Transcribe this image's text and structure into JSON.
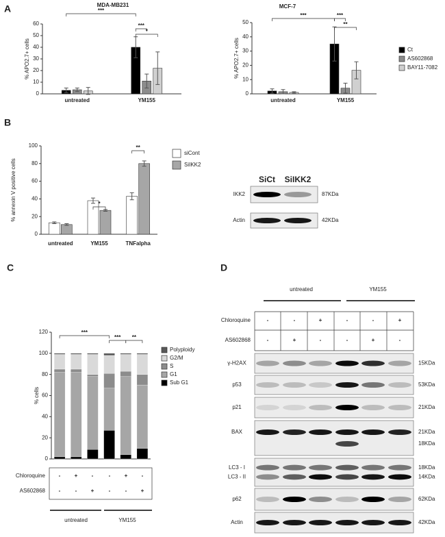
{
  "panel_labels": [
    "A",
    "B",
    "C",
    "D"
  ],
  "chart_data": [
    {
      "type": "bar",
      "title": "MDA-MB231",
      "y_label": "% APO2.7+ cells",
      "categories": [
        "untreated",
        "YM155"
      ],
      "series": [
        {
          "color": "#000000",
          "values": [
            3,
            40
          ],
          "errors": [
            2,
            9
          ]
        },
        {
          "color": "#8c8c8c",
          "values": [
            3.5,
            11
          ],
          "errors": [
            1.5,
            6
          ]
        },
        {
          "color": "#d0d0d0",
          "values": [
            2.5,
            22
          ],
          "errors": [
            3,
            14
          ]
        }
      ],
      "ylim": [
        0,
        60
      ],
      "yticks": [
        0,
        10,
        20,
        30,
        40,
        50,
        60
      ],
      "annotations": [
        "***",
        "***",
        "*"
      ]
    },
    {
      "type": "bar",
      "title": "MCF-7",
      "y_label": "% APO2.7+ cells",
      "categories": [
        "untreated",
        "YM155"
      ],
      "series": [
        {
          "name": "Ct",
          "color": "#000000",
          "values": [
            2,
            35
          ],
          "errors": [
            1.5,
            12
          ]
        },
        {
          "name": "AS602868",
          "color": "#8c8c8c",
          "values": [
            1.5,
            4
          ],
          "errors": [
            1.5,
            3.5
          ]
        },
        {
          "name": "BAY11-7082",
          "color": "#d0d0d0",
          "values": [
            1,
            16.5
          ],
          "errors": [
            0.5,
            6
          ]
        }
      ],
      "ylim": [
        0,
        50
      ],
      "yticks": [
        0,
        10,
        20,
        30,
        40,
        50
      ],
      "annotations": [
        "***",
        "***",
        "**"
      ],
      "legend": "right"
    },
    {
      "type": "bar",
      "y_label": "% annexin V positive cells",
      "categories": [
        "untreated",
        "YM155",
        "TNFalpha"
      ],
      "series": [
        {
          "name": "siCont",
          "color": "#ffffff",
          "values": [
            13,
            38,
            43
          ],
          "errors": [
            1,
            3,
            4
          ]
        },
        {
          "name": "SiIKK2",
          "color": "#a6a6a6",
          "values": [
            11,
            27,
            80
          ],
          "errors": [
            1,
            1,
            3
          ]
        }
      ],
      "ylim": [
        0,
        100
      ],
      "yticks": [
        0,
        20,
        40,
        60,
        80,
        100
      ],
      "annotations": [
        "*",
        "**"
      ],
      "legend": "right"
    },
    {
      "type": "stacked_bar",
      "y_label": "% cells",
      "categories": [
        null,
        null,
        null,
        null,
        null,
        null
      ],
      "series": [
        {
          "name": "Sub G1",
          "color": "#000000",
          "values": [
            2,
            2,
            9,
            27,
            4,
            10
          ]
        },
        {
          "name": "G1",
          "color": "#a6a6a6",
          "values": [
            80,
            80,
            69,
            40,
            74,
            60
          ]
        },
        {
          "name": "S",
          "color": "#8c8c8c",
          "values": [
            3,
            3,
            2,
            14,
            5,
            10
          ]
        },
        {
          "name": "G2/M",
          "color": "#d9d9d9",
          "values": [
            14,
            14,
            19,
            17,
            16,
            19
          ]
        },
        {
          "name": "Polyploidy",
          "color": "#595959",
          "values": [
            1,
            1,
            1,
            2,
            1,
            1
          ]
        }
      ],
      "ylim": [
        0,
        120
      ],
      "yticks": [
        0,
        20,
        40,
        60,
        80,
        100,
        120
      ],
      "annotations": [
        "***",
        "***",
        "**"
      ],
      "legend": "right"
    }
  ],
  "blot_b": {
    "columns": [
      "SiCt",
      "SiIKK2"
    ],
    "rows": [
      {
        "label": "IKK2",
        "size": "87KDa"
      },
      {
        "label": "Actin",
        "size": "42KDa"
      }
    ]
  },
  "table_c": {
    "rows": [
      {
        "label": "Chloroquine",
        "cells": [
          "-",
          "+",
          "-",
          "-",
          "+",
          "-"
        ]
      },
      {
        "label": "AS602868",
        "cells": [
          "-",
          "-",
          "+",
          "-",
          "-",
          "+"
        ]
      }
    ],
    "groups": [
      "untreated",
      "YM155"
    ]
  },
  "blot_d": {
    "groups": [
      "untreated",
      "YM155"
    ],
    "treatments": [
      {
        "label": "Chloroquine",
        "cells": [
          "-",
          "-",
          "+",
          "-",
          "-",
          "+"
        ]
      },
      {
        "label": "AS602868",
        "cells": [
          "-",
          "+",
          "-",
          "-",
          "+",
          "-"
        ]
      }
    ],
    "rows": [
      {
        "labels": [
          "γ-H2AX"
        ],
        "sizes": [
          "15KDa"
        ]
      },
      {
        "labels": [
          "p53"
        ],
        "sizes": [
          "53KDa"
        ]
      },
      {
        "labels": [
          "p21"
        ],
        "sizes": [
          "21KDa"
        ]
      },
      {
        "labels": [
          "BAX"
        ],
        "sizes": [
          "21KDa",
          "18KDa"
        ]
      },
      {
        "labels": [
          "LC3 - I",
          "LC3 - II"
        ],
        "sizes": [
          "18KDa",
          "14KDa"
        ]
      },
      {
        "labels": [
          "p62"
        ],
        "sizes": [
          "62KDa"
        ]
      },
      {
        "labels": [
          "Actin"
        ],
        "sizes": [
          "42KDa"
        ]
      }
    ]
  }
}
